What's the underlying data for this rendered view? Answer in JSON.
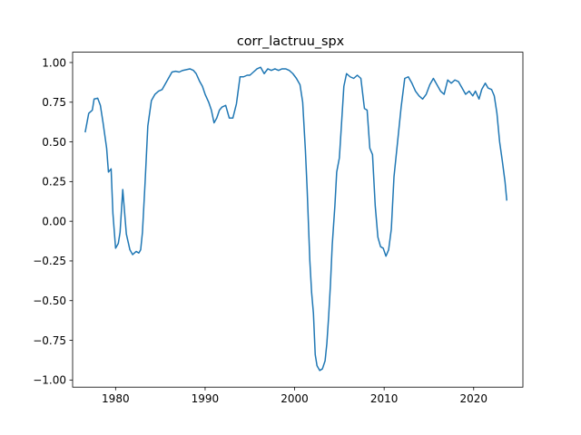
{
  "chart_data": {
    "type": "line",
    "title": "corr_lactruu_spx",
    "xlabel": "",
    "ylabel": "",
    "xlim": [
      1975.2,
      2025.5
    ],
    "ylim": [
      -1.045,
      1.065
    ],
    "grid": false,
    "legend": "none",
    "line_color": "#1f77b4",
    "xticks": [
      1980,
      1990,
      2000,
      2010,
      2020
    ],
    "xtick_labels": [
      "1980",
      "1990",
      "2000",
      "2010",
      "2020"
    ],
    "yticks": [
      -1.0,
      -0.75,
      -0.5,
      -0.25,
      0.0,
      0.25,
      0.5,
      0.75,
      1.0
    ],
    "ytick_labels": [
      "−1.00",
      "−0.75",
      "−0.50",
      "−0.25",
      "0.00",
      "0.25",
      "0.50",
      "0.75",
      "1.00"
    ],
    "series": [
      {
        "x": [
          1976.6,
          1977.0,
          1977.4,
          1977.6,
          1978.0,
          1978.3,
          1978.6,
          1979.0,
          1979.2,
          1979.5,
          1979.7,
          1980.0,
          1980.3,
          1980.5,
          1980.8,
          1981.2,
          1981.6,
          1981.9,
          1982.3,
          1982.6,
          1982.8,
          1983.0,
          1983.3,
          1983.6,
          1984.0,
          1984.4,
          1984.8,
          1985.2,
          1985.5,
          1985.9,
          1986.3,
          1986.7,
          1987.1,
          1987.5,
          1987.9,
          1988.3,
          1988.7,
          1989.0,
          1989.4,
          1989.7,
          1990.0,
          1990.4,
          1990.7,
          1991.0,
          1991.3,
          1991.6,
          1991.9,
          1992.3,
          1992.7,
          1993.1,
          1993.5,
          1993.9,
          1994.3,
          1994.7,
          1995.0,
          1995.4,
          1995.8,
          1996.2,
          1996.6,
          1997.0,
          1997.4,
          1997.8,
          1998.2,
          1998.6,
          1999.0,
          1999.4,
          1999.8,
          2000.2,
          2000.6,
          2000.9,
          2001.2,
          2001.4,
          2001.7,
          2001.9,
          2002.1,
          2002.3,
          2002.5,
          2002.8,
          2003.1,
          2003.4,
          2003.6,
          2003.8,
          2004.0,
          2004.2,
          2004.5,
          2004.7,
          2005.0,
          2005.2,
          2005.5,
          2005.8,
          2006.2,
          2006.6,
          2007.0,
          2007.4,
          2007.8,
          2008.1,
          2008.4,
          2008.7,
          2009.0,
          2009.3,
          2009.6,
          2009.9,
          2010.2,
          2010.5,
          2010.8,
          2011.1,
          2011.5,
          2011.9,
          2012.3,
          2012.7,
          2013.1,
          2013.5,
          2013.9,
          2014.3,
          2014.7,
          2015.1,
          2015.5,
          2015.9,
          2016.3,
          2016.7,
          2017.1,
          2017.5,
          2017.9,
          2018.3,
          2018.7,
          2019.1,
          2019.5,
          2019.9,
          2020.2,
          2020.6,
          2020.9,
          2021.3,
          2021.6,
          2022.0,
          2022.3,
          2022.6,
          2022.9,
          2023.2,
          2023.5,
          2023.7
        ],
        "y": [
          0.56,
          0.68,
          0.7,
          0.77,
          0.775,
          0.73,
          0.62,
          0.46,
          0.31,
          0.33,
          0.05,
          -0.17,
          -0.14,
          -0.07,
          0.2,
          -0.08,
          -0.18,
          -0.21,
          -0.19,
          -0.2,
          -0.18,
          -0.07,
          0.25,
          0.6,
          0.76,
          0.8,
          0.82,
          0.83,
          0.86,
          0.9,
          0.94,
          0.945,
          0.94,
          0.95,
          0.955,
          0.96,
          0.95,
          0.93,
          0.88,
          0.85,
          0.8,
          0.75,
          0.7,
          0.62,
          0.65,
          0.7,
          0.72,
          0.73,
          0.65,
          0.65,
          0.74,
          0.91,
          0.91,
          0.92,
          0.92,
          0.94,
          0.96,
          0.97,
          0.93,
          0.96,
          0.95,
          0.96,
          0.95,
          0.96,
          0.96,
          0.95,
          0.93,
          0.9,
          0.86,
          0.75,
          0.45,
          0.2,
          -0.25,
          -0.45,
          -0.58,
          -0.84,
          -0.91,
          -0.94,
          -0.93,
          -0.88,
          -0.77,
          -0.6,
          -0.4,
          -0.15,
          0.1,
          0.31,
          0.4,
          0.58,
          0.85,
          0.93,
          0.91,
          0.9,
          0.92,
          0.9,
          0.71,
          0.7,
          0.46,
          0.42,
          0.1,
          -0.1,
          -0.16,
          -0.17,
          -0.22,
          -0.18,
          -0.05,
          0.28,
          0.5,
          0.72,
          0.9,
          0.91,
          0.87,
          0.82,
          0.79,
          0.77,
          0.8,
          0.86,
          0.9,
          0.86,
          0.82,
          0.8,
          0.89,
          0.87,
          0.89,
          0.88,
          0.84,
          0.8,
          0.82,
          0.79,
          0.82,
          0.77,
          0.83,
          0.87,
          0.84,
          0.83,
          0.79,
          0.68,
          0.5,
          0.38,
          0.25,
          0.13
        ]
      }
    ]
  }
}
